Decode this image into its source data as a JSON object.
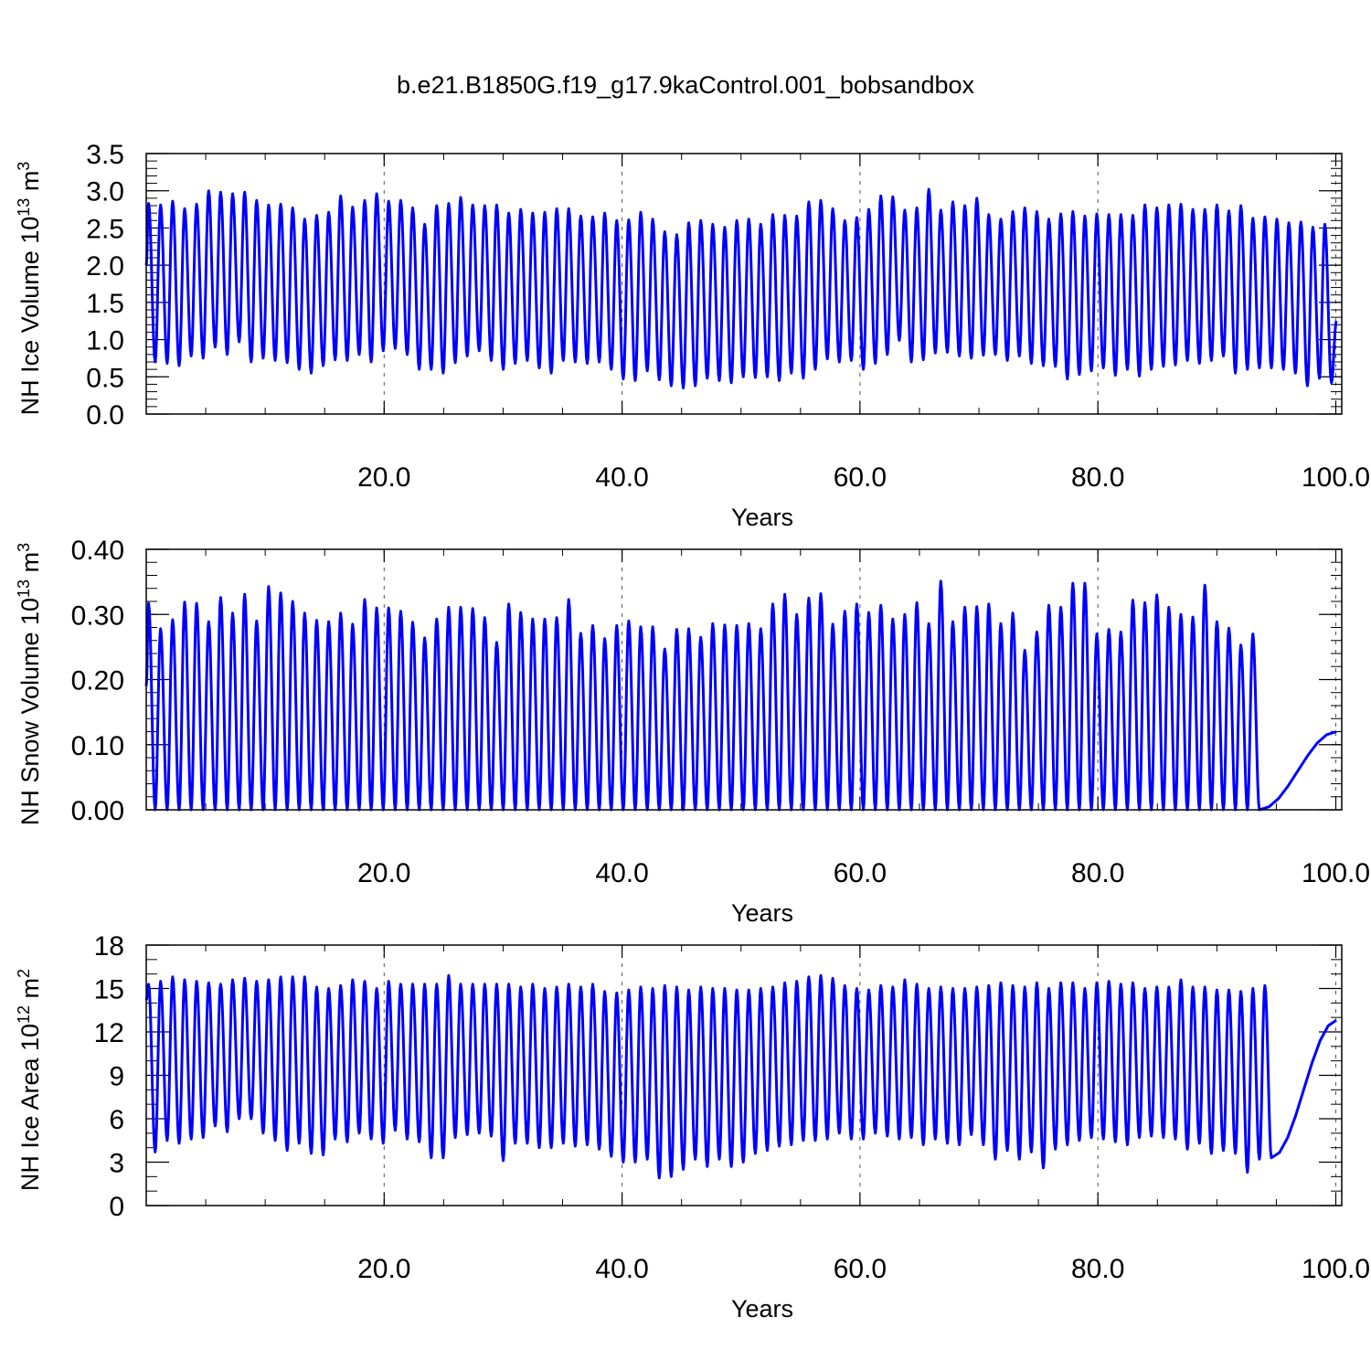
{
  "title": "b.e21.B1850G.f19_g17.9kaControl.001_bobsandbox",
  "line_color": "#0000ff",
  "chart_data": [
    {
      "type": "line",
      "name": "ice-volume",
      "ylabel": "NH Ice Volume 10",
      "ylabel_exp": "13",
      "ylabel_unit": " m",
      "ylabel_unit_exp": "3",
      "xlabel": "Years",
      "xlim": [
        0.0,
        100.5
      ],
      "ylim": [
        0.0,
        3.5
      ],
      "yticks": [
        "0.0",
        "0.5",
        "1.0",
        "1.5",
        "2.0",
        "2.5",
        "3.0",
        "3.5"
      ],
      "ytick_values": [
        0.0,
        0.5,
        1.0,
        1.5,
        2.0,
        2.5,
        3.0,
        3.5
      ],
      "yminor_step": 0.1,
      "xticks": [
        "20.0",
        "40.0",
        "60.0",
        "80.0",
        "100.0"
      ],
      "xtick_values": [
        20,
        40,
        60,
        80,
        100
      ],
      "xminor_step": 5,
      "grid_x": "dashed at major x ticks",
      "series": [
        {
          "start": 2.0,
          "end": 1.25,
          "max": [
            2.83,
            2.81,
            2.86,
            2.76,
            2.82,
            3.0,
            2.98,
            2.96,
            2.98,
            2.87,
            2.81,
            2.82,
            2.77,
            2.62,
            2.67,
            2.71,
            2.93,
            2.78,
            2.87,
            2.96,
            2.86,
            2.87,
            2.77,
            2.55,
            2.8,
            2.83,
            2.91,
            2.81,
            2.8,
            2.81,
            2.7,
            2.75,
            2.7,
            2.71,
            2.76,
            2.76,
            2.66,
            2.65,
            2.7,
            2.6,
            2.61,
            2.71,
            2.62,
            2.45,
            2.41,
            2.57,
            2.6,
            2.55,
            2.51,
            2.6,
            2.62,
            2.55,
            2.68,
            2.67,
            2.66,
            2.85,
            2.87,
            2.76,
            2.6,
            2.64,
            2.75,
            2.93,
            2.92,
            2.74,
            2.77,
            3.02,
            2.74,
            2.85,
            2.8,
            2.9,
            2.68,
            2.62,
            2.72,
            2.77,
            2.72,
            2.62,
            2.69,
            2.72,
            2.66,
            2.69,
            2.68,
            2.68,
            2.67,
            2.81,
            2.77,
            2.81,
            2.82,
            2.75,
            2.75,
            2.81,
            2.73,
            2.8,
            2.63,
            2.65,
            2.62,
            2.57,
            2.58,
            2.51,
            2.55
          ],
          "min": [
            0.7,
            0.68,
            0.65,
            0.78,
            0.75,
            0.9,
            0.8,
            0.97,
            0.7,
            0.75,
            0.72,
            0.69,
            0.6,
            0.55,
            0.65,
            0.73,
            0.72,
            0.8,
            0.7,
            0.85,
            0.88,
            0.8,
            0.6,
            0.6,
            0.55,
            0.69,
            0.78,
            0.85,
            0.72,
            0.6,
            0.68,
            0.72,
            0.62,
            0.55,
            0.72,
            0.7,
            0.68,
            0.7,
            0.6,
            0.47,
            0.45,
            0.58,
            0.46,
            0.38,
            0.35,
            0.38,
            0.48,
            0.45,
            0.42,
            0.5,
            0.49,
            0.5,
            0.45,
            0.55,
            0.48,
            0.6,
            0.74,
            0.7,
            0.72,
            0.6,
            0.68,
            0.8,
            0.99,
            0.7,
            0.73,
            0.82,
            0.83,
            0.78,
            0.75,
            0.79,
            0.8,
            0.72,
            0.78,
            0.68,
            0.65,
            0.64,
            0.47,
            0.53,
            0.58,
            0.62,
            0.52,
            0.6,
            0.51,
            0.6,
            0.64,
            0.66,
            0.72,
            0.68,
            0.72,
            0.78,
            0.55,
            0.6,
            0.62,
            0.62,
            0.6,
            0.55,
            0.38,
            0.48,
            0.42
          ]
        }
      ]
    },
    {
      "type": "line",
      "name": "snow-volume",
      "ylabel": "NH Snow Volume 10",
      "ylabel_exp": "13",
      "ylabel_unit": " m",
      "ylabel_unit_exp": "3",
      "xlabel": "Years",
      "xlim": [
        0.0,
        100.5
      ],
      "ylim": [
        0.0,
        0.4
      ],
      "yticks": [
        "0.00",
        "0.10",
        "0.20",
        "0.30",
        "0.40"
      ],
      "ytick_values": [
        0.0,
        0.1,
        0.2,
        0.3,
        0.4
      ],
      "yminor_step": 0.02,
      "xticks": [
        "20.0",
        "40.0",
        "60.0",
        "80.0",
        "100.0"
      ],
      "xtick_values": [
        20,
        40,
        60,
        80,
        100
      ],
      "xminor_step": 5,
      "grid_x": "dashed at major x ticks",
      "series": [
        {
          "start": 0.19,
          "end": 0.12,
          "max": [
            0.317,
            0.278,
            0.292,
            0.319,
            0.317,
            0.289,
            0.326,
            0.302,
            0.331,
            0.29,
            0.343,
            0.333,
            0.32,
            0.302,
            0.291,
            0.289,
            0.302,
            0.285,
            0.323,
            0.31,
            0.31,
            0.305,
            0.288,
            0.264,
            0.293,
            0.311,
            0.311,
            0.309,
            0.295,
            0.257,
            0.316,
            0.303,
            0.293,
            0.293,
            0.295,
            0.323,
            0.271,
            0.283,
            0.263,
            0.283,
            0.29,
            0.281,
            0.281,
            0.247,
            0.277,
            0.278,
            0.265,
            0.286,
            0.284,
            0.283,
            0.286,
            0.278,
            0.316,
            0.331,
            0.3,
            0.325,
            0.332,
            0.285,
            0.305,
            0.316,
            0.303,
            0.314,
            0.293,
            0.3,
            0.318,
            0.286,
            0.351,
            0.289,
            0.311,
            0.312,
            0.316,
            0.286,
            0.302,
            0.245,
            0.273,
            0.314,
            0.311,
            0.348,
            0.348,
            0.27,
            0.277,
            0.273,
            0.322,
            0.318,
            0.33,
            0.311,
            0.3,
            0.296,
            0.345,
            0.289,
            0.279,
            0.253,
            0.27
          ],
          "min": [
            0.0
          ]
        }
      ]
    },
    {
      "type": "line",
      "name": "ice-area",
      "ylabel": "NH Ice Area 10",
      "ylabel_exp": "12",
      "ylabel_unit": " m",
      "ylabel_unit_exp": "2",
      "xlabel": "Years",
      "xlim": [
        0.0,
        100.5
      ],
      "ylim": [
        0,
        18
      ],
      "yticks": [
        "0",
        "3",
        "6",
        "9",
        "12",
        "15",
        "18"
      ],
      "ytick_values": [
        0,
        3,
        6,
        9,
        12,
        15,
        18
      ],
      "yminor_step": 1,
      "xticks": [
        "20.0",
        "40.0",
        "60.0",
        "80.0",
        "100.0"
      ],
      "xtick_values": [
        20,
        40,
        60,
        80,
        100
      ],
      "xminor_step": 5,
      "grid_x": "dashed at major x ticks",
      "series": [
        {
          "start": 14.2,
          "end": 12.8,
          "max": [
            15.3,
            15.5,
            15.8,
            15.6,
            15.5,
            15.4,
            15.3,
            15.6,
            15.7,
            15.5,
            15.6,
            15.8,
            15.8,
            15.8,
            15.1,
            15.0,
            15.2,
            15.6,
            15.5,
            15.0,
            15.5,
            15.3,
            15.3,
            15.3,
            15.3,
            15.9,
            15.3,
            15.3,
            15.3,
            15.3,
            15.3,
            15.1,
            15.3,
            15.0,
            15.1,
            15.3,
            15.1,
            15.3,
            14.8,
            14.7,
            14.9,
            15.1,
            15.0,
            15.2,
            15.1,
            14.9,
            15.1,
            15.0,
            15.0,
            14.9,
            14.9,
            15.0,
            15.1,
            15.4,
            15.5,
            15.8,
            15.9,
            15.7,
            15.2,
            15.0,
            14.9,
            15.2,
            15.1,
            15.6,
            15.3,
            15.0,
            15.1,
            15.0,
            15.0,
            15.1,
            15.2,
            15.4,
            15.2,
            15.1,
            15.4,
            15.0,
            15.4,
            15.4,
            15.0,
            15.4,
            15.5,
            15.3,
            15.4,
            15.0,
            15.1,
            15.1,
            15.6,
            15.1,
            15.1,
            14.9,
            14.9,
            14.8,
            15.0,
            15.2
          ],
          "min": [
            3.7,
            4.5,
            4.3,
            4.6,
            4.7,
            5.5,
            5.1,
            6.0,
            6.0,
            5.0,
            4.5,
            3.8,
            4.3,
            3.6,
            3.5,
            4.6,
            4.4,
            5.0,
            4.6,
            4.3,
            5.2,
            4.6,
            4.4,
            3.3,
            3.3,
            4.7,
            4.9,
            5.0,
            4.8,
            3.1,
            4.3,
            4.3,
            4.0,
            4.0,
            4.3,
            4.1,
            4.2,
            3.9,
            3.4,
            3.0,
            3.0,
            3.2,
            1.9,
            2.0,
            2.5,
            3.2,
            2.7,
            3.2,
            2.7,
            3.0,
            3.6,
            3.8,
            4.1,
            4.2,
            4.5,
            4.5,
            4.6,
            5.0,
            4.6,
            4.6,
            5.0,
            4.8,
            4.6,
            4.7,
            4.2,
            4.6,
            4.3,
            4.2,
            4.9,
            4.2,
            3.2,
            3.8,
            3.2,
            3.7,
            2.6,
            3.9,
            4.2,
            4.5,
            4.7,
            4.6,
            4.4,
            4.2,
            4.7,
            4.8,
            4.7,
            4.6,
            3.9,
            4.3,
            3.6,
            3.8,
            3.6,
            2.3,
            3.2,
            3.3,
            2.7
          ]
        }
      ]
    }
  ]
}
